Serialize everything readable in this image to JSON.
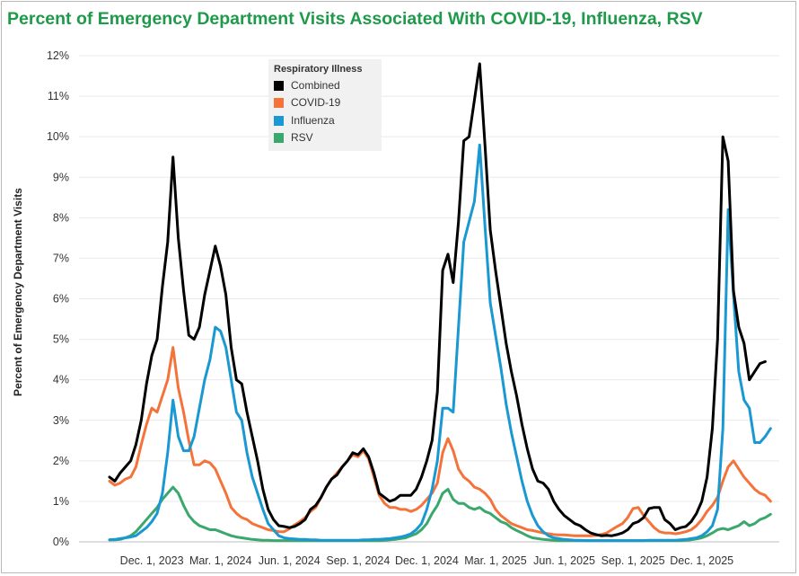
{
  "title": "Percent of Emergency Department Visits Associated With COVID-19, Influenza, RSV",
  "chart_data": {
    "type": "line",
    "title": "Percent of Emergency Department Visits Associated With COVID-19, Influenza, RSV",
    "xlabel": "",
    "ylabel": "Percent of Emergency Department Visits",
    "ylim": [
      0,
      12
    ],
    "yticks": [
      "0%",
      "1%",
      "2%",
      "3%",
      "4%",
      "5%",
      "6%",
      "7%",
      "8%",
      "9%",
      "10%",
      "11%",
      "12%"
    ],
    "x_start": "2023-10-07",
    "x_interval": "weekly",
    "xticks": [
      {
        "label": "Dec. 1, 2023",
        "week": 8
      },
      {
        "label": "Mar. 1, 2024",
        "week": 21
      },
      {
        "label": "Jun. 1, 2024",
        "week": 34
      },
      {
        "label": "Sep. 1, 2024",
        "week": 47
      },
      {
        "label": "Dec. 1, 2024",
        "week": 60
      },
      {
        "label": "Mar. 1, 2025",
        "week": 73
      },
      {
        "label": "Jun. 1, 2025",
        "week": 86
      },
      {
        "label": "Sep. 1, 2025",
        "week": 99
      },
      {
        "label": "Dec. 1, 2025",
        "week": 112
      }
    ],
    "legend_title": "Respiratory Illness",
    "legend_position": "top-center",
    "series": [
      {
        "name": "Combined",
        "color": "#000000",
        "values": [
          1.6,
          1.5,
          1.7,
          1.85,
          2.0,
          2.4,
          3.0,
          3.9,
          4.6,
          5.0,
          6.3,
          7.4,
          9.5,
          7.5,
          6.2,
          5.1,
          5.0,
          5.3,
          6.1,
          6.7,
          7.3,
          6.8,
          6.1,
          4.8,
          4.0,
          3.9,
          3.2,
          2.6,
          2.0,
          1.3,
          0.8,
          0.55,
          0.4,
          0.38,
          0.35,
          0.38,
          0.45,
          0.55,
          0.8,
          0.9,
          1.1,
          1.35,
          1.55,
          1.65,
          1.85,
          2.0,
          2.2,
          2.15,
          2.3,
          2.1,
          1.7,
          1.2,
          1.1,
          1.0,
          1.05,
          1.15,
          1.15,
          1.15,
          1.3,
          1.6,
          2.0,
          2.5,
          3.7,
          6.7,
          7.1,
          6.4,
          7.9,
          9.9,
          10.0,
          10.9,
          11.8,
          9.8,
          7.7,
          6.7,
          5.8,
          4.9,
          4.2,
          3.6,
          2.9,
          2.3,
          1.8,
          1.5,
          1.45,
          1.3,
          1.0,
          0.8,
          0.65,
          0.55,
          0.45,
          0.4,
          0.3,
          0.22,
          0.18,
          0.15,
          0.16,
          0.15,
          0.18,
          0.22,
          0.3,
          0.45,
          0.5,
          0.6,
          0.82,
          0.85,
          0.85,
          0.55,
          0.45,
          0.3,
          0.35,
          0.38,
          0.5,
          0.7,
          1.0,
          1.6,
          2.8,
          5.0,
          10.0,
          9.4,
          6.2,
          5.3,
          4.9,
          4.0,
          4.2,
          4.4,
          4.45
        ]
      },
      {
        "name": "COVID-19",
        "color": "#f4733b",
        "values": [
          1.5,
          1.4,
          1.45,
          1.55,
          1.6,
          1.85,
          2.4,
          2.9,
          3.3,
          3.2,
          3.6,
          4.0,
          4.8,
          3.8,
          3.2,
          2.5,
          1.9,
          1.9,
          2.0,
          1.95,
          1.8,
          1.5,
          1.2,
          0.85,
          0.7,
          0.6,
          0.55,
          0.45,
          0.4,
          0.35,
          0.3,
          0.28,
          0.25,
          0.25,
          0.32,
          0.42,
          0.5,
          0.6,
          0.75,
          0.85,
          1.1,
          1.35,
          1.55,
          1.7,
          1.85,
          2.0,
          2.15,
          2.1,
          2.25,
          2.05,
          1.6,
          1.15,
          0.95,
          0.85,
          0.85,
          0.8,
          0.8,
          0.75,
          0.8,
          0.9,
          1.05,
          1.2,
          1.45,
          2.2,
          2.55,
          2.25,
          1.8,
          1.6,
          1.5,
          1.35,
          1.3,
          1.2,
          1.05,
          0.8,
          0.65,
          0.55,
          0.45,
          0.4,
          0.35,
          0.3,
          0.28,
          0.25,
          0.22,
          0.2,
          0.18,
          0.17,
          0.17,
          0.16,
          0.15,
          0.15,
          0.15,
          0.15,
          0.16,
          0.18,
          0.22,
          0.3,
          0.38,
          0.45,
          0.6,
          0.82,
          0.85,
          0.65,
          0.5,
          0.35,
          0.25,
          0.22,
          0.22,
          0.2,
          0.22,
          0.25,
          0.3,
          0.4,
          0.55,
          0.75,
          0.9,
          1.1,
          1.5,
          1.85,
          2.0,
          1.8,
          1.6,
          1.45,
          1.3,
          1.2,
          1.15,
          1.0
        ]
      },
      {
        "name": "Influenza",
        "color": "#1a98d2",
        "values": [
          0.05,
          0.06,
          0.08,
          0.1,
          0.12,
          0.15,
          0.25,
          0.35,
          0.5,
          0.7,
          1.2,
          2.2,
          3.5,
          2.6,
          2.25,
          2.25,
          2.6,
          3.3,
          4.0,
          4.5,
          5.3,
          5.2,
          4.8,
          4.0,
          3.2,
          3.0,
          2.2,
          1.6,
          1.2,
          0.8,
          0.45,
          0.3,
          0.15,
          0.1,
          0.08,
          0.07,
          0.06,
          0.06,
          0.05,
          0.05,
          0.04,
          0.04,
          0.04,
          0.04,
          0.04,
          0.04,
          0.04,
          0.04,
          0.05,
          0.05,
          0.06,
          0.06,
          0.07,
          0.08,
          0.1,
          0.12,
          0.15,
          0.2,
          0.3,
          0.45,
          0.8,
          1.3,
          2.0,
          3.3,
          3.3,
          3.2,
          5.3,
          7.4,
          7.9,
          8.4,
          9.8,
          7.8,
          5.9,
          5.1,
          4.3,
          3.4,
          2.7,
          2.1,
          1.5,
          1.0,
          0.65,
          0.4,
          0.25,
          0.15,
          0.1,
          0.08,
          0.06,
          0.05,
          0.04,
          0.04,
          0.03,
          0.03,
          0.03,
          0.03,
          0.03,
          0.03,
          0.03,
          0.03,
          0.03,
          0.03,
          0.03,
          0.03,
          0.04,
          0.04,
          0.04,
          0.04,
          0.04,
          0.04,
          0.05,
          0.06,
          0.08,
          0.1,
          0.15,
          0.25,
          0.4,
          0.8,
          2.8,
          8.2,
          6.1,
          4.2,
          3.5,
          3.3,
          2.45,
          2.45,
          2.6,
          2.8
        ]
      },
      {
        "name": "RSV",
        "color": "#3aa86c",
        "values": [
          0.05,
          0.05,
          0.06,
          0.1,
          0.15,
          0.25,
          0.4,
          0.55,
          0.7,
          0.85,
          1.05,
          1.2,
          1.35,
          1.2,
          0.9,
          0.65,
          0.5,
          0.4,
          0.35,
          0.3,
          0.3,
          0.25,
          0.2,
          0.15,
          0.12,
          0.1,
          0.08,
          0.06,
          0.05,
          0.04,
          0.04,
          0.03,
          0.03,
          0.03,
          0.03,
          0.03,
          0.03,
          0.03,
          0.03,
          0.03,
          0.03,
          0.03,
          0.03,
          0.03,
          0.03,
          0.03,
          0.03,
          0.03,
          0.03,
          0.03,
          0.03,
          0.03,
          0.04,
          0.05,
          0.06,
          0.08,
          0.1,
          0.15,
          0.2,
          0.3,
          0.45,
          0.7,
          0.9,
          1.2,
          1.3,
          1.05,
          0.95,
          0.95,
          0.85,
          0.8,
          0.85,
          0.75,
          0.7,
          0.6,
          0.5,
          0.45,
          0.35,
          0.28,
          0.22,
          0.15,
          0.1,
          0.08,
          0.06,
          0.05,
          0.04,
          0.03,
          0.03,
          0.03,
          0.03,
          0.03,
          0.03,
          0.03,
          0.03,
          0.03,
          0.03,
          0.03,
          0.03,
          0.03,
          0.03,
          0.03,
          0.03,
          0.03,
          0.03,
          0.03,
          0.03,
          0.03,
          0.03,
          0.03,
          0.03,
          0.04,
          0.05,
          0.07,
          0.1,
          0.15,
          0.22,
          0.3,
          0.33,
          0.3,
          0.35,
          0.4,
          0.5,
          0.4,
          0.45,
          0.55,
          0.6,
          0.68
        ]
      }
    ]
  }
}
